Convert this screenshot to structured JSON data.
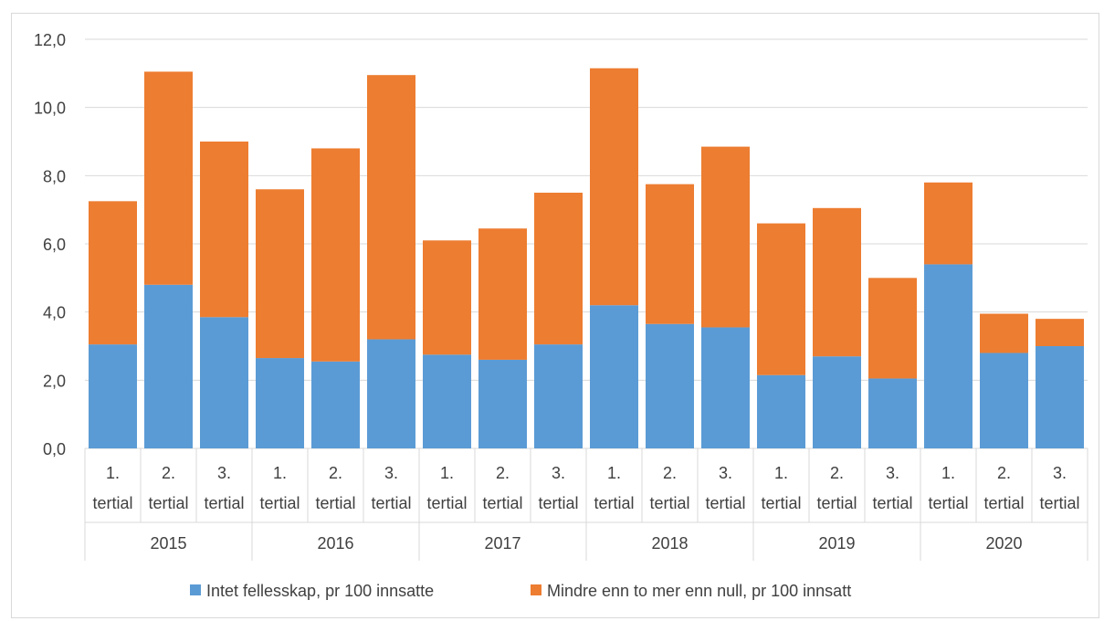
{
  "chart_data": {
    "type": "bar",
    "stacked": true,
    "title": "",
    "xlabel": "",
    "ylabel": "",
    "ylim": [
      0,
      12
    ],
    "yticks": [
      "0,0",
      "2,0",
      "4,0",
      "6,0",
      "8,0",
      "10,0",
      "12,0"
    ],
    "grid": true,
    "legend_position": "bottom",
    "categories": [
      {
        "line1": "1.",
        "line2": "tertial",
        "year": "2015"
      },
      {
        "line1": "2.",
        "line2": "tertial",
        "year": "2015"
      },
      {
        "line1": "3.",
        "line2": "tertial",
        "year": "2015"
      },
      {
        "line1": "1.",
        "line2": "tertial",
        "year": "2016"
      },
      {
        "line1": "2.",
        "line2": "tertial",
        "year": "2016"
      },
      {
        "line1": "3.",
        "line2": "tertial",
        "year": "2016"
      },
      {
        "line1": "1.",
        "line2": "tertial",
        "year": "2017"
      },
      {
        "line1": "2.",
        "line2": "tertial",
        "year": "2017"
      },
      {
        "line1": "3.",
        "line2": "tertial",
        "year": "2017"
      },
      {
        "line1": "1.",
        "line2": "tertial",
        "year": "2018"
      },
      {
        "line1": "2.",
        "line2": "tertial",
        "year": "2018"
      },
      {
        "line1": "3.",
        "line2": "tertial",
        "year": "2018"
      },
      {
        "line1": "1.",
        "line2": "tertial",
        "year": "2019"
      },
      {
        "line1": "2.",
        "line2": "tertial",
        "year": "2019"
      },
      {
        "line1": "3.",
        "line2": "tertial",
        "year": "2019"
      },
      {
        "line1": "1.",
        "line2": "tertial",
        "year": "2020"
      },
      {
        "line1": "2.",
        "line2": "tertial",
        "year": "2020"
      },
      {
        "line1": "3.",
        "line2": "tertial",
        "year": "2020"
      }
    ],
    "groups": [
      "2015",
      "2016",
      "2017",
      "2018",
      "2019",
      "2020"
    ],
    "series": [
      {
        "name": "Intet fellesskap, pr 100 innsatte",
        "color": "#5b9bd5",
        "values": [
          3.05,
          4.8,
          3.85,
          2.65,
          2.55,
          3.2,
          2.75,
          2.6,
          3.05,
          4.2,
          3.65,
          3.55,
          2.15,
          2.7,
          2.05,
          5.4,
          2.8,
          3.0
        ]
      },
      {
        "name": "Mindre enn to mer enn null, pr 100 innsatt",
        "color": "#ed7d31",
        "values": [
          4.2,
          6.25,
          5.15,
          4.95,
          6.25,
          7.75,
          3.35,
          3.85,
          4.45,
          6.95,
          4.1,
          5.3,
          4.45,
          4.35,
          2.95,
          2.4,
          1.15,
          0.8
        ]
      }
    ]
  }
}
